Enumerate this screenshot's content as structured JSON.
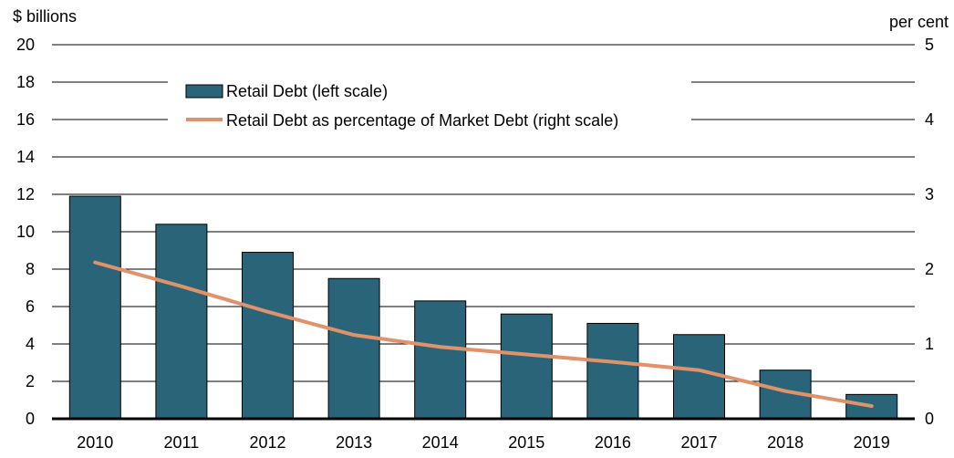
{
  "chart_data": {
    "type": "bar",
    "categories": [
      "2010",
      "2011",
      "2012",
      "2013",
      "2014",
      "2015",
      "2016",
      "2017",
      "2018",
      "2019"
    ],
    "series": [
      {
        "name": "Retail Debt (left scale)",
        "type": "bar",
        "axis": "left",
        "values": [
          11.9,
          10.4,
          8.9,
          7.5,
          6.3,
          5.6,
          5.1,
          4.5,
          2.6,
          1.3
        ]
      },
      {
        "name": "Retail Debt as percentage of Market Debt (right scale)",
        "type": "line",
        "axis": "right",
        "values": [
          2.09,
          1.77,
          1.43,
          1.12,
          0.96,
          0.86,
          0.76,
          0.65,
          0.37,
          0.17
        ]
      }
    ],
    "left_axis": {
      "label": "$ billions",
      "ylim": [
        0,
        20
      ],
      "ticks": [
        "0",
        "2",
        "4",
        "6",
        "8",
        "10",
        "12",
        "14",
        "16",
        "18",
        "20"
      ]
    },
    "right_axis": {
      "label": "per cent",
      "ylim": [
        0,
        5
      ],
      "ticks": [
        "0",
        "1",
        "2",
        "3",
        "4",
        "5"
      ]
    },
    "grid": true,
    "legend_position": "top-center",
    "colors": {
      "bar_fill": "#2a6478",
      "bar_stroke": "#000000",
      "line": "#e0936b",
      "grid": "#000000"
    }
  }
}
